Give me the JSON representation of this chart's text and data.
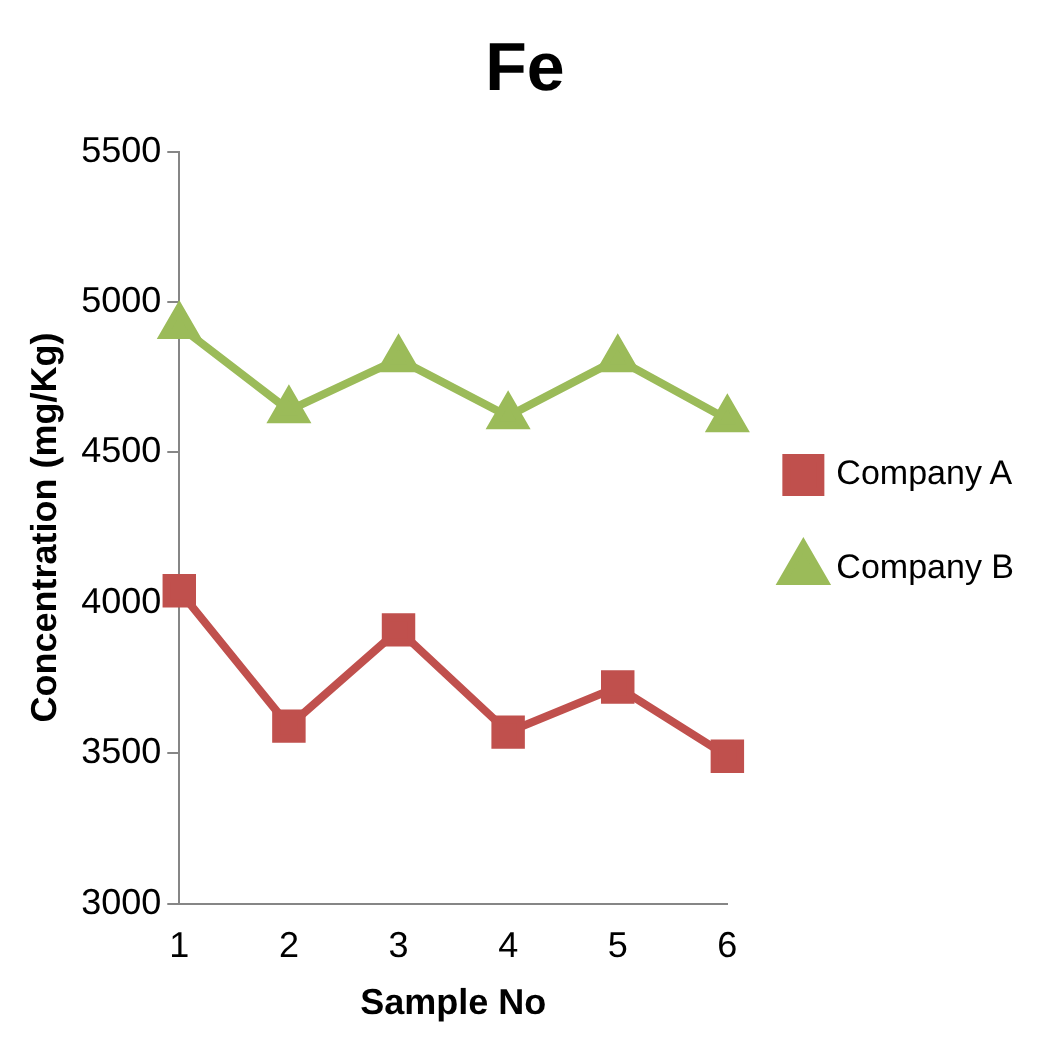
{
  "chart_data": {
    "type": "line",
    "title": "Fe",
    "xlabel": "Sample No",
    "ylabel": "Concentration (mg/Kg)",
    "categories": [
      "1",
      "2",
      "3",
      "4",
      "5",
      "6"
    ],
    "series": [
      {
        "name": "Company A",
        "color": "#c0504d",
        "marker": "square",
        "values": [
          4040,
          3590,
          3910,
          3570,
          3720,
          3490
        ]
      },
      {
        "name": "Company B",
        "color": "#9bbb59",
        "marker": "triangle",
        "values": [
          4920,
          4640,
          4810,
          4620,
          4810,
          4610
        ]
      }
    ],
    "ylim": [
      3000,
      5500
    ],
    "yticks": [
      3000,
      3500,
      4000,
      4500,
      5000,
      5500
    ],
    "grid": false,
    "legend": "right",
    "line_style": "solid"
  }
}
